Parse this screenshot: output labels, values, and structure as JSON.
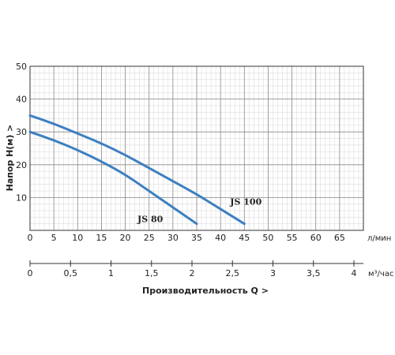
{
  "chart_data": {
    "type": "line",
    "ylabel": "Напор  H(м) >",
    "xlabel_top_unit": "л/мин",
    "xlabel_bottom": "Производительность Q  >",
    "xlabel_bottom_unit": "м³/час",
    "xlim": [
      0,
      70
    ],
    "ylim": [
      0,
      50
    ],
    "x_ticks": [
      0,
      5,
      10,
      15,
      20,
      25,
      30,
      35,
      40,
      45,
      50,
      55,
      60,
      65
    ],
    "y_ticks": [
      10,
      20,
      30,
      40,
      50
    ],
    "x2_ticks": [
      "0",
      "0,5",
      "1",
      "1,5",
      "2",
      "2,5",
      "3",
      "3,5",
      "4"
    ],
    "x2_lim": [
      0,
      4.2
    ],
    "grid": true,
    "series": [
      {
        "name": "JS 80",
        "color": "#3d7fc1",
        "points": [
          [
            0,
            30
          ],
          [
            5,
            27.5
          ],
          [
            10,
            24.5
          ],
          [
            15,
            21
          ],
          [
            20,
            17
          ],
          [
            25,
            12
          ],
          [
            30,
            7
          ],
          [
            35,
            2
          ]
        ]
      },
      {
        "name": "JS 100",
        "color": "#3d7fc1",
        "points": [
          [
            0,
            35
          ],
          [
            5,
            32.5
          ],
          [
            10,
            29.5
          ],
          [
            15,
            26.5
          ],
          [
            20,
            23
          ],
          [
            25,
            19
          ],
          [
            30,
            15
          ],
          [
            35,
            11
          ],
          [
            40,
            6.5
          ],
          [
            45,
            2
          ]
        ]
      }
    ]
  }
}
